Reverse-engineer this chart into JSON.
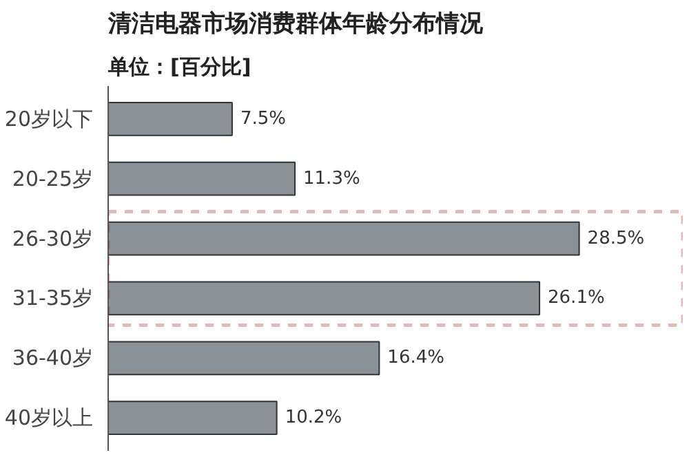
{
  "chart_data": {
    "type": "bar",
    "orientation": "horizontal",
    "title": "清洁电器市场消费群体年龄分布情况",
    "subtitle": "单位：[百分比]",
    "categories": [
      "20岁以下",
      "20-25岁",
      "26-30岁",
      "31-35岁",
      "36-40岁",
      "40岁以上"
    ],
    "values": [
      7.5,
      11.3,
      28.5,
      26.1,
      16.4,
      10.2
    ],
    "value_labels": [
      "7.5%",
      "11.3%",
      "28.5%",
      "26.1%",
      "16.4%",
      "10.2%"
    ],
    "color": "#8c9196",
    "grid": false
  }
}
